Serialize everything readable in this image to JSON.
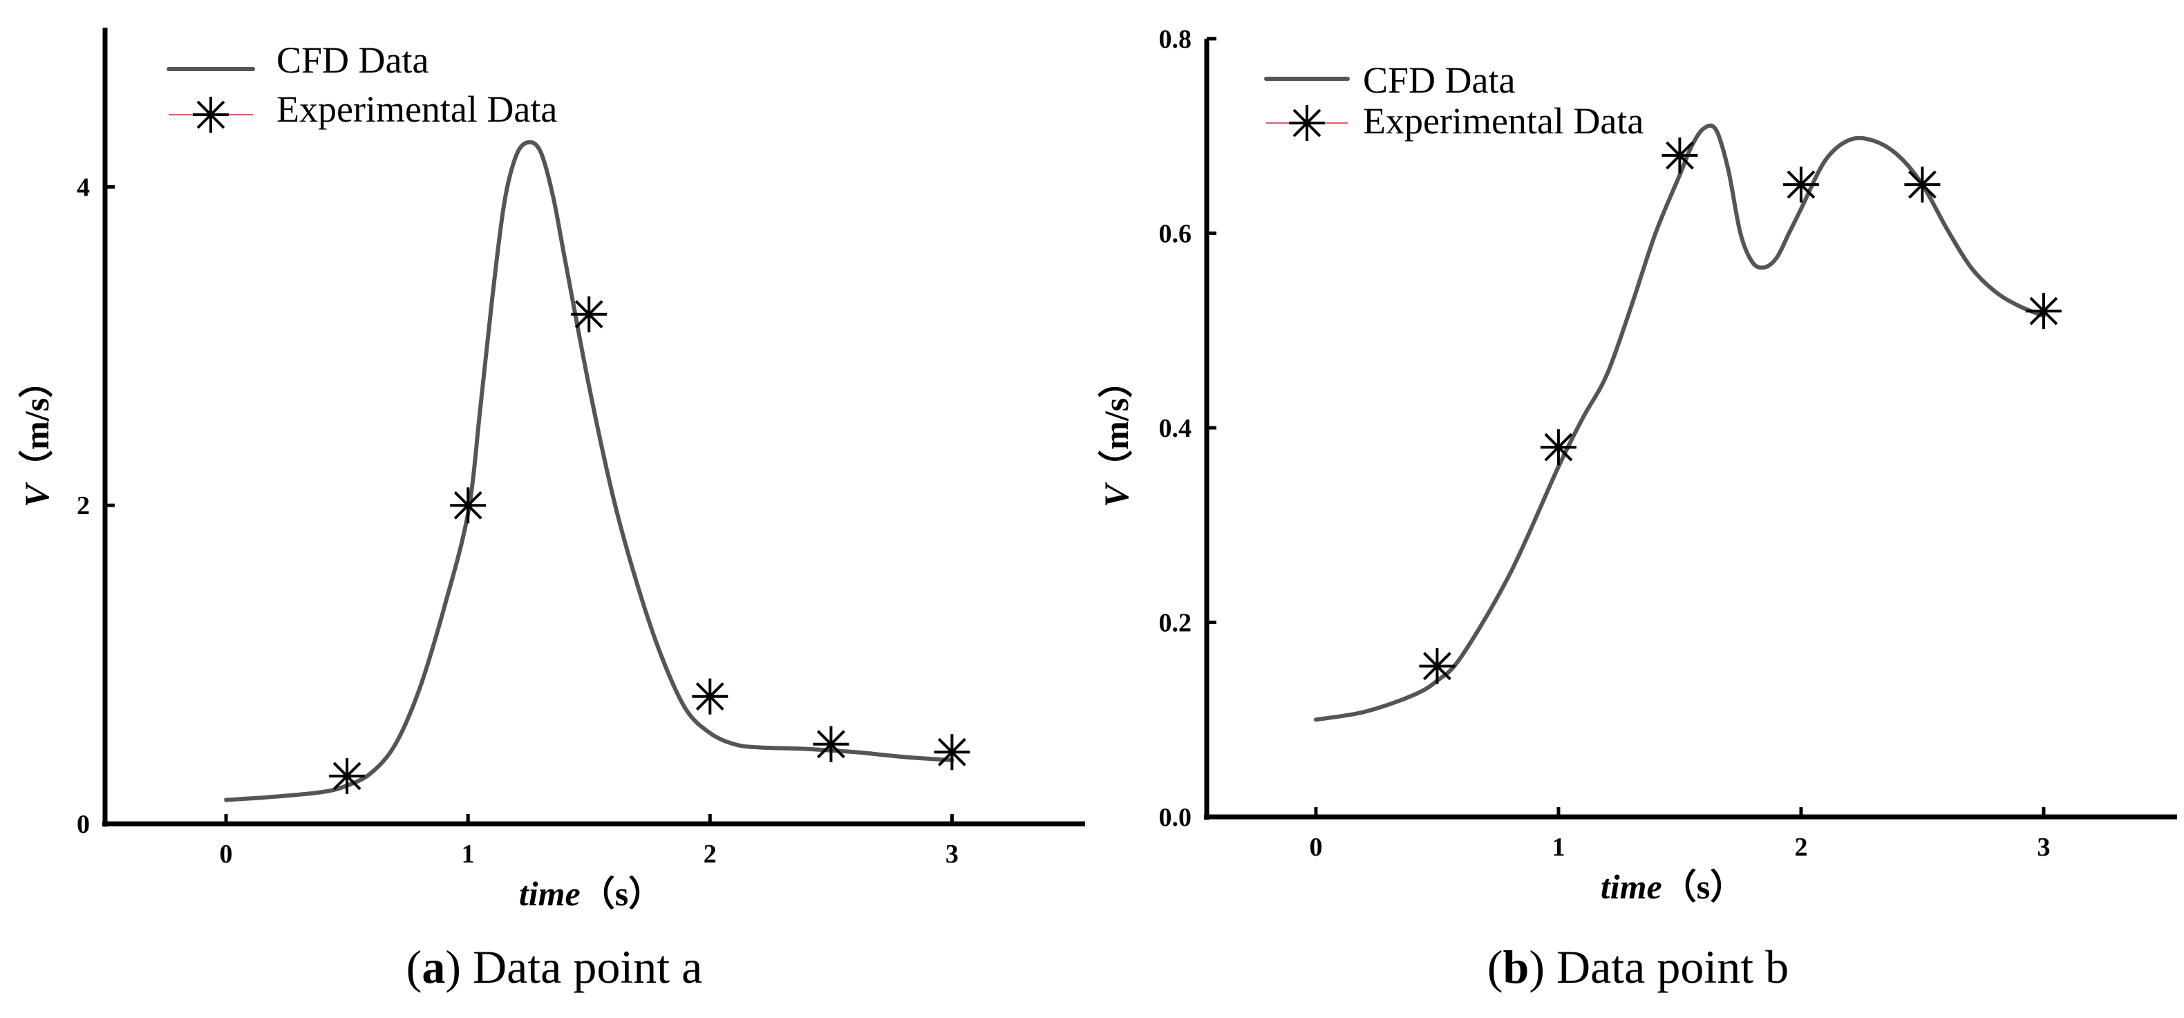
{
  "chart_data": [
    {
      "type": "line",
      "caption": {
        "letter": "a",
        "text": "Data point a"
      },
      "xlabel": "time",
      "xunit": "（s）",
      "ylabel": "V",
      "yunit": "（m/s）",
      "xlim": [
        -0.5,
        3.55
      ],
      "ylim": [
        0,
        5.0
      ],
      "xticks": [
        0,
        1,
        2,
        3
      ],
      "yticks": [
        0,
        2,
        4
      ],
      "legend": {
        "position": "top-left",
        "entries": [
          "CFD Data",
          "Experimental  Data"
        ]
      },
      "colors": {
        "cfd": "#555555",
        "experimental": "#000000",
        "legend_marker_line": "#e06060"
      },
      "series": [
        {
          "name": "CFD Data",
          "style": "line",
          "x": [
            0,
            0.2,
            0.4,
            0.5,
            0.6,
            0.7,
            0.8,
            0.9,
            1.0,
            1.05,
            1.1,
            1.15,
            1.2,
            1.25,
            1.3,
            1.35,
            1.4,
            1.5,
            1.6,
            1.7,
            1.8,
            1.9,
            2.0,
            2.1,
            2.2,
            2.4,
            2.6,
            2.8,
            3.0
          ],
          "y": [
            0.15,
            0.17,
            0.2,
            0.24,
            0.32,
            0.5,
            0.85,
            1.35,
            1.95,
            2.6,
            3.3,
            3.9,
            4.2,
            4.28,
            4.22,
            3.95,
            3.55,
            2.75,
            2.05,
            1.5,
            1.05,
            0.72,
            0.57,
            0.5,
            0.48,
            0.47,
            0.45,
            0.42,
            0.4
          ]
        },
        {
          "name": "Experimental  Data",
          "style": "marker",
          "x": [
            0.5,
            1.0,
            1.5,
            2.0,
            2.5,
            3.0
          ],
          "y": [
            0.3,
            2.0,
            3.2,
            0.8,
            0.5,
            0.45
          ]
        }
      ]
    },
    {
      "type": "line",
      "caption": {
        "letter": "b",
        "text": "Data point b"
      },
      "xlabel": "time",
      "xunit": "（s）",
      "ylabel": "V",
      "yunit": "（m/s）",
      "xlim": [
        -0.45,
        3.55
      ],
      "ylim": [
        0,
        0.8
      ],
      "xticks": [
        0,
        1,
        2,
        3
      ],
      "yticks": [
        "0.0",
        "0.2",
        "0.4",
        "0.6",
        "0.8"
      ],
      "legend": {
        "position": "top-left",
        "entries": [
          "CFD Data",
          "Experimental  Data"
        ]
      },
      "colors": {
        "cfd": "#555555",
        "experimental": "#000000",
        "legend_marker_line": "#e06060"
      },
      "series": [
        {
          "name": "CFD Data",
          "style": "line",
          "x": [
            0,
            0.2,
            0.4,
            0.5,
            0.6,
            0.8,
            1.0,
            1.1,
            1.2,
            1.3,
            1.4,
            1.5,
            1.55,
            1.6,
            1.65,
            1.7,
            1.75,
            1.8,
            1.85,
            1.9,
            1.95,
            2.0,
            2.1,
            2.2,
            2.3,
            2.4,
            2.5,
            2.6,
            2.7,
            2.8,
            2.9,
            3.0
          ],
          "y": [
            0.1,
            0.108,
            0.125,
            0.14,
            0.165,
            0.25,
            0.36,
            0.41,
            0.455,
            0.525,
            0.6,
            0.66,
            0.69,
            0.708,
            0.706,
            0.665,
            0.6,
            0.57,
            0.565,
            0.575,
            0.6,
            0.625,
            0.675,
            0.696,
            0.695,
            0.68,
            0.65,
            0.605,
            0.565,
            0.54,
            0.525,
            0.515
          ]
        },
        {
          "name": "Experimental  Data",
          "style": "marker",
          "x": [
            0.5,
            1.0,
            1.5,
            2.0,
            2.5,
            3.0
          ],
          "y": [
            0.155,
            0.38,
            0.68,
            0.65,
            0.65,
            0.52
          ]
        }
      ]
    }
  ]
}
